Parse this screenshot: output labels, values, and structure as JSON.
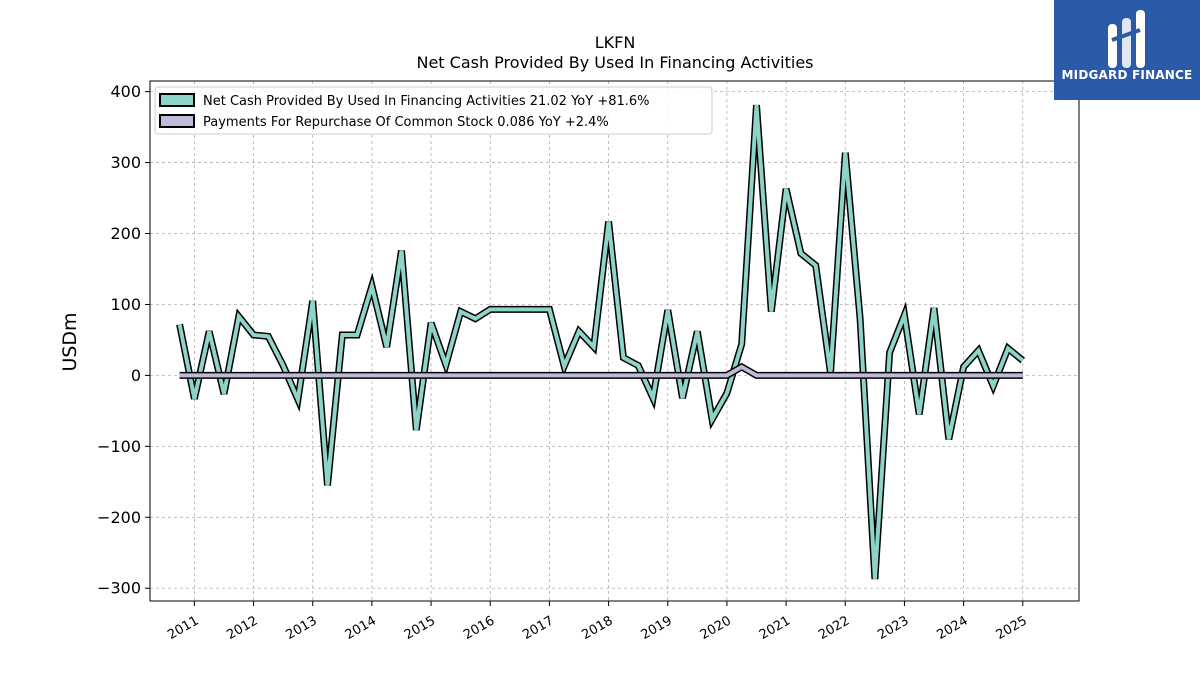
{
  "logo": {
    "text": "MIDGARD FINANCE",
    "accent": "#2b5aa8"
  },
  "chart_data": {
    "type": "line",
    "title": "LKFN",
    "subtitle": "Net Cash Provided By Used In Financing Activities",
    "ylabel": "USDm",
    "xlabel": "",
    "ylim": [
      -318,
      415
    ],
    "xlim": [
      2010.25,
      2025.95
    ],
    "yticks": [
      -300,
      -200,
      -100,
      0,
      100,
      200,
      300,
      400
    ],
    "ytick_labels": [
      "−300",
      "−200",
      "−100",
      "0",
      "100",
      "200",
      "300",
      "400"
    ],
    "xticks": [
      2011,
      2012,
      2013,
      2014,
      2015,
      2016,
      2017,
      2018,
      2019,
      2020,
      2021,
      2022,
      2023,
      2024,
      2025
    ],
    "xtick_labels": [
      "2011",
      "2012",
      "2013",
      "2014",
      "2015",
      "2016",
      "2017",
      "2018",
      "2019",
      "2020",
      "2021",
      "2022",
      "2023",
      "2024",
      "2025"
    ],
    "grid": true,
    "legend_position": "upper-left",
    "series": [
      {
        "name": "Net Cash Provided By Used In Financing Activities  21.02 YoY +81.6%",
        "color": "#8dd3c7",
        "points": [
          [
            2010.75,
            72
          ],
          [
            2011.0,
            -33
          ],
          [
            2011.25,
            62
          ],
          [
            2011.5,
            -26
          ],
          [
            2011.75,
            83
          ],
          [
            2012.0,
            57
          ],
          [
            2012.25,
            55
          ],
          [
            2012.5,
            14
          ],
          [
            2012.75,
            -34
          ],
          [
            2013.0,
            105
          ],
          [
            2013.25,
            -155
          ],
          [
            2013.5,
            57
          ],
          [
            2013.75,
            57
          ],
          [
            2014.0,
            126
          ],
          [
            2014.25,
            40
          ],
          [
            2014.5,
            176
          ],
          [
            2014.75,
            -77
          ],
          [
            2015.0,
            74
          ],
          [
            2015.25,
            15
          ],
          [
            2015.5,
            90
          ],
          [
            2015.75,
            80
          ],
          [
            2016.0,
            93
          ],
          [
            2016.25,
            93
          ],
          [
            2016.5,
            93
          ],
          [
            2016.75,
            93
          ],
          [
            2017.0,
            93
          ],
          [
            2017.25,
            13
          ],
          [
            2017.5,
            62
          ],
          [
            2017.75,
            40
          ],
          [
            2018.0,
            217
          ],
          [
            2018.25,
            25
          ],
          [
            2018.5,
            14
          ],
          [
            2018.75,
            -32
          ],
          [
            2019.0,
            92
          ],
          [
            2019.25,
            -32
          ],
          [
            2019.5,
            62
          ],
          [
            2019.75,
            -62
          ],
          [
            2020.0,
            -25
          ],
          [
            2020.25,
            44
          ],
          [
            2020.5,
            381
          ],
          [
            2020.75,
            90
          ],
          [
            2021.0,
            263
          ],
          [
            2021.25,
            172
          ],
          [
            2021.5,
            155
          ],
          [
            2021.75,
            3
          ],
          [
            2022.0,
            314
          ],
          [
            2022.25,
            80
          ],
          [
            2022.5,
            -287
          ],
          [
            2022.75,
            32
          ],
          [
            2023.0,
            85
          ],
          [
            2023.25,
            -55
          ],
          [
            2023.5,
            95
          ],
          [
            2023.75,
            -90
          ],
          [
            2024.0,
            12
          ],
          [
            2024.25,
            35
          ],
          [
            2024.5,
            -15
          ],
          [
            2024.75,
            38
          ],
          [
            2025.0,
            21
          ]
        ]
      },
      {
        "name": "Payments For Repurchase Of Common Stock  0.086 YoY +2.4%",
        "color": "#bebada",
        "points": [
          [
            2010.75,
            0
          ],
          [
            2011.0,
            0
          ],
          [
            2011.5,
            0
          ],
          [
            2012.0,
            0
          ],
          [
            2012.5,
            0
          ],
          [
            2013.0,
            0
          ],
          [
            2013.5,
            0
          ],
          [
            2014.0,
            0
          ],
          [
            2014.5,
            0
          ],
          [
            2015.0,
            0
          ],
          [
            2015.5,
            0
          ],
          [
            2016.0,
            0
          ],
          [
            2016.5,
            0
          ],
          [
            2017.0,
            0
          ],
          [
            2017.5,
            0
          ],
          [
            2018.0,
            0
          ],
          [
            2018.5,
            0
          ],
          [
            2019.0,
            0
          ],
          [
            2019.5,
            0
          ],
          [
            2020.0,
            0
          ],
          [
            2020.25,
            12
          ],
          [
            2020.5,
            0
          ],
          [
            2020.75,
            0
          ],
          [
            2021.0,
            0
          ],
          [
            2021.5,
            0
          ],
          [
            2022.0,
            0
          ],
          [
            2022.5,
            0
          ],
          [
            2023.0,
            0
          ],
          [
            2023.5,
            0
          ],
          [
            2024.0,
            0
          ],
          [
            2024.5,
            0
          ],
          [
            2025.0,
            0
          ]
        ]
      }
    ]
  }
}
